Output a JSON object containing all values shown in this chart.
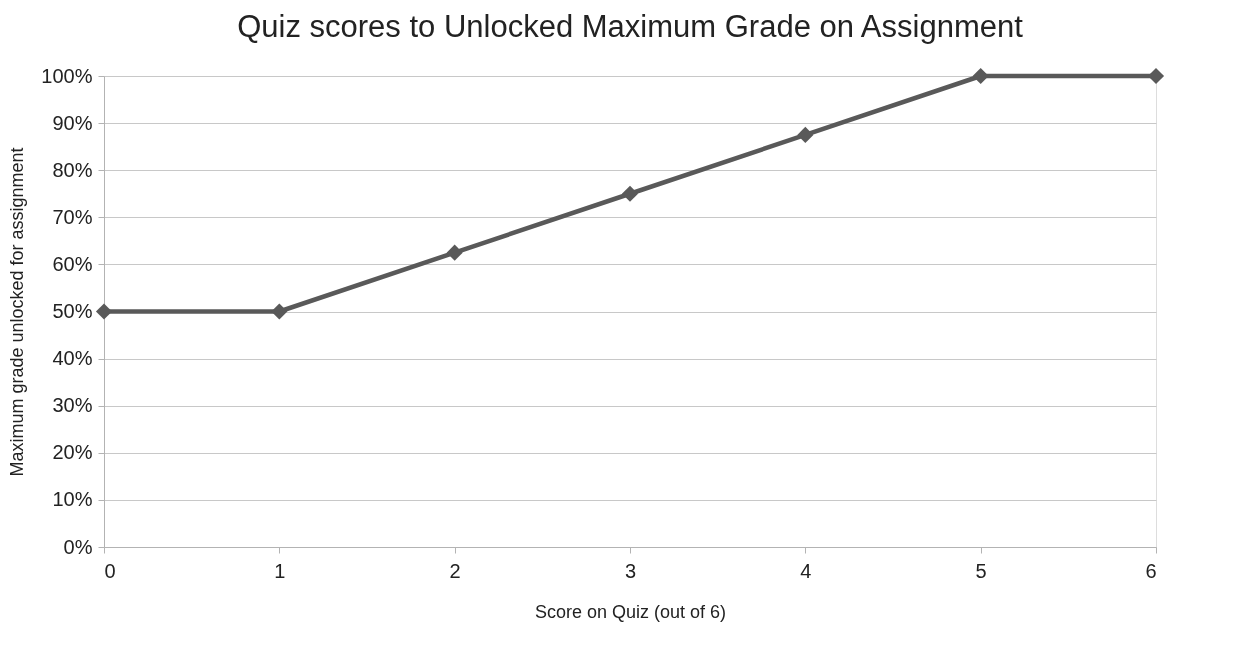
{
  "chart_data": {
    "type": "line",
    "title": "Quiz scores to Unlocked Maximum Grade on Assignment",
    "xlabel": "Score on Quiz (out of 6)",
    "ylabel": "Maximum grade unlocked for assignment",
    "x": [
      0,
      1,
      2,
      3,
      4,
      5,
      6
    ],
    "series": [
      {
        "color": "#595959",
        "values": [
          50,
          50,
          62.5,
          75,
          87.5,
          100,
          100
        ]
      }
    ],
    "xlim": [
      0,
      6
    ],
    "xticks": [
      0,
      1,
      2,
      3,
      4,
      5,
      6
    ],
    "ylim": [
      0,
      100
    ],
    "yticks": [
      {
        "value": 0,
        "label": "0%"
      },
      {
        "value": 10,
        "label": "10%"
      },
      {
        "value": 20,
        "label": "20%"
      },
      {
        "value": 30,
        "label": "30%"
      },
      {
        "value": 40,
        "label": "40%"
      },
      {
        "value": 50,
        "label": "50%"
      },
      {
        "value": 60,
        "label": "60%"
      },
      {
        "value": 70,
        "label": "70%"
      },
      {
        "value": 80,
        "label": "80%"
      },
      {
        "value": 90,
        "label": "90%"
      },
      {
        "value": 100,
        "label": "100%"
      }
    ],
    "grid": "y",
    "marker": "diamond",
    "line_style": "solid"
  }
}
